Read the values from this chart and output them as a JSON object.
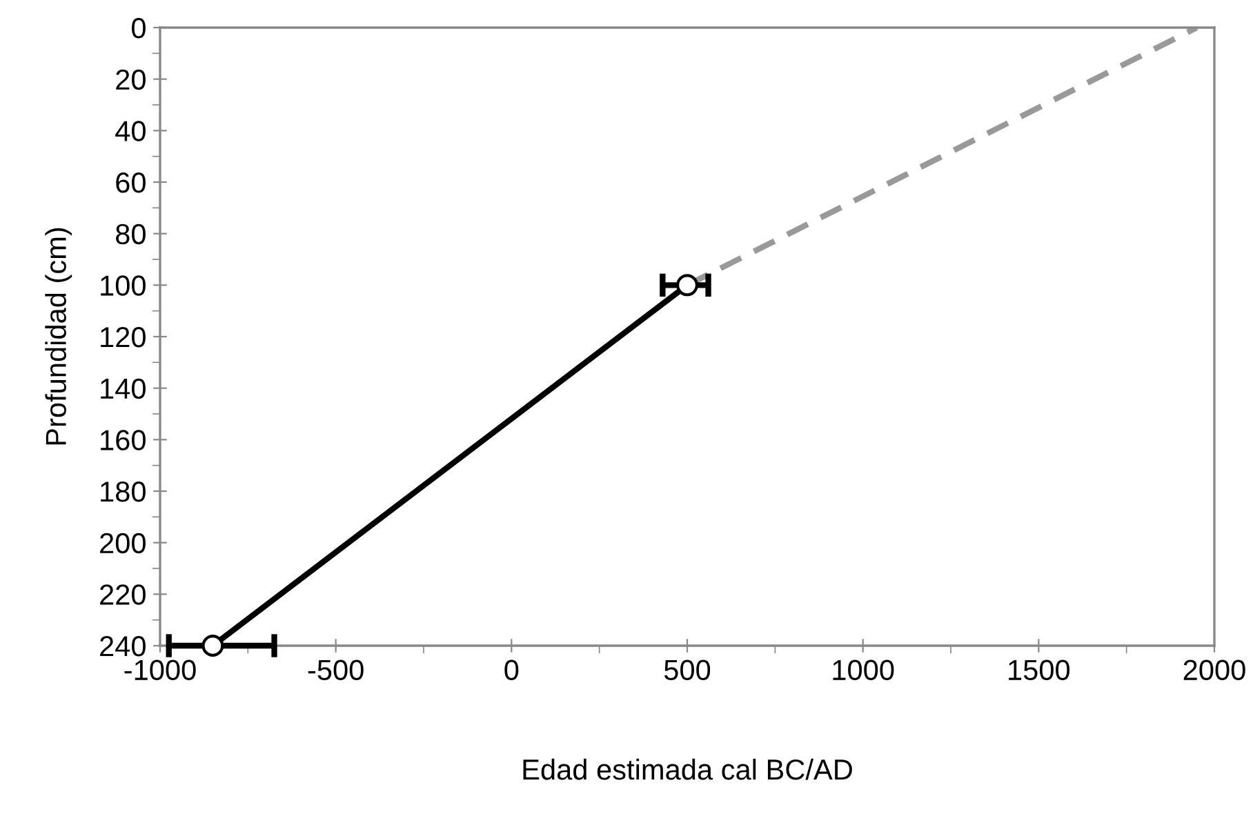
{
  "chart_data": {
    "type": "line",
    "xlabel": "Edad estimada cal BC/AD",
    "ylabel": "Profundidad (cm)",
    "xlim": [
      -1000,
      2000
    ],
    "xticks": [
      -1000,
      -500,
      0,
      500,
      1000,
      1500,
      2000
    ],
    "ylim": [
      240,
      0
    ],
    "yticks": [
      0,
      20,
      40,
      60,
      80,
      100,
      120,
      140,
      160,
      180,
      200,
      220,
      240
    ],
    "grid": false,
    "series": [
      {
        "color": "#000000",
        "x": [
          -850,
          500
        ],
        "values": [
          240,
          100
        ],
        "xerrors": [
          [
            -975,
            -675
          ],
          [
            430,
            560
          ]
        ],
        "marker": "circle",
        "line_style": "solid"
      },
      {
        "color": "#999999",
        "x": [
          500,
          1950
        ],
        "values": [
          100,
          0
        ],
        "marker": "none",
        "line_style": "dashed"
      }
    ]
  }
}
